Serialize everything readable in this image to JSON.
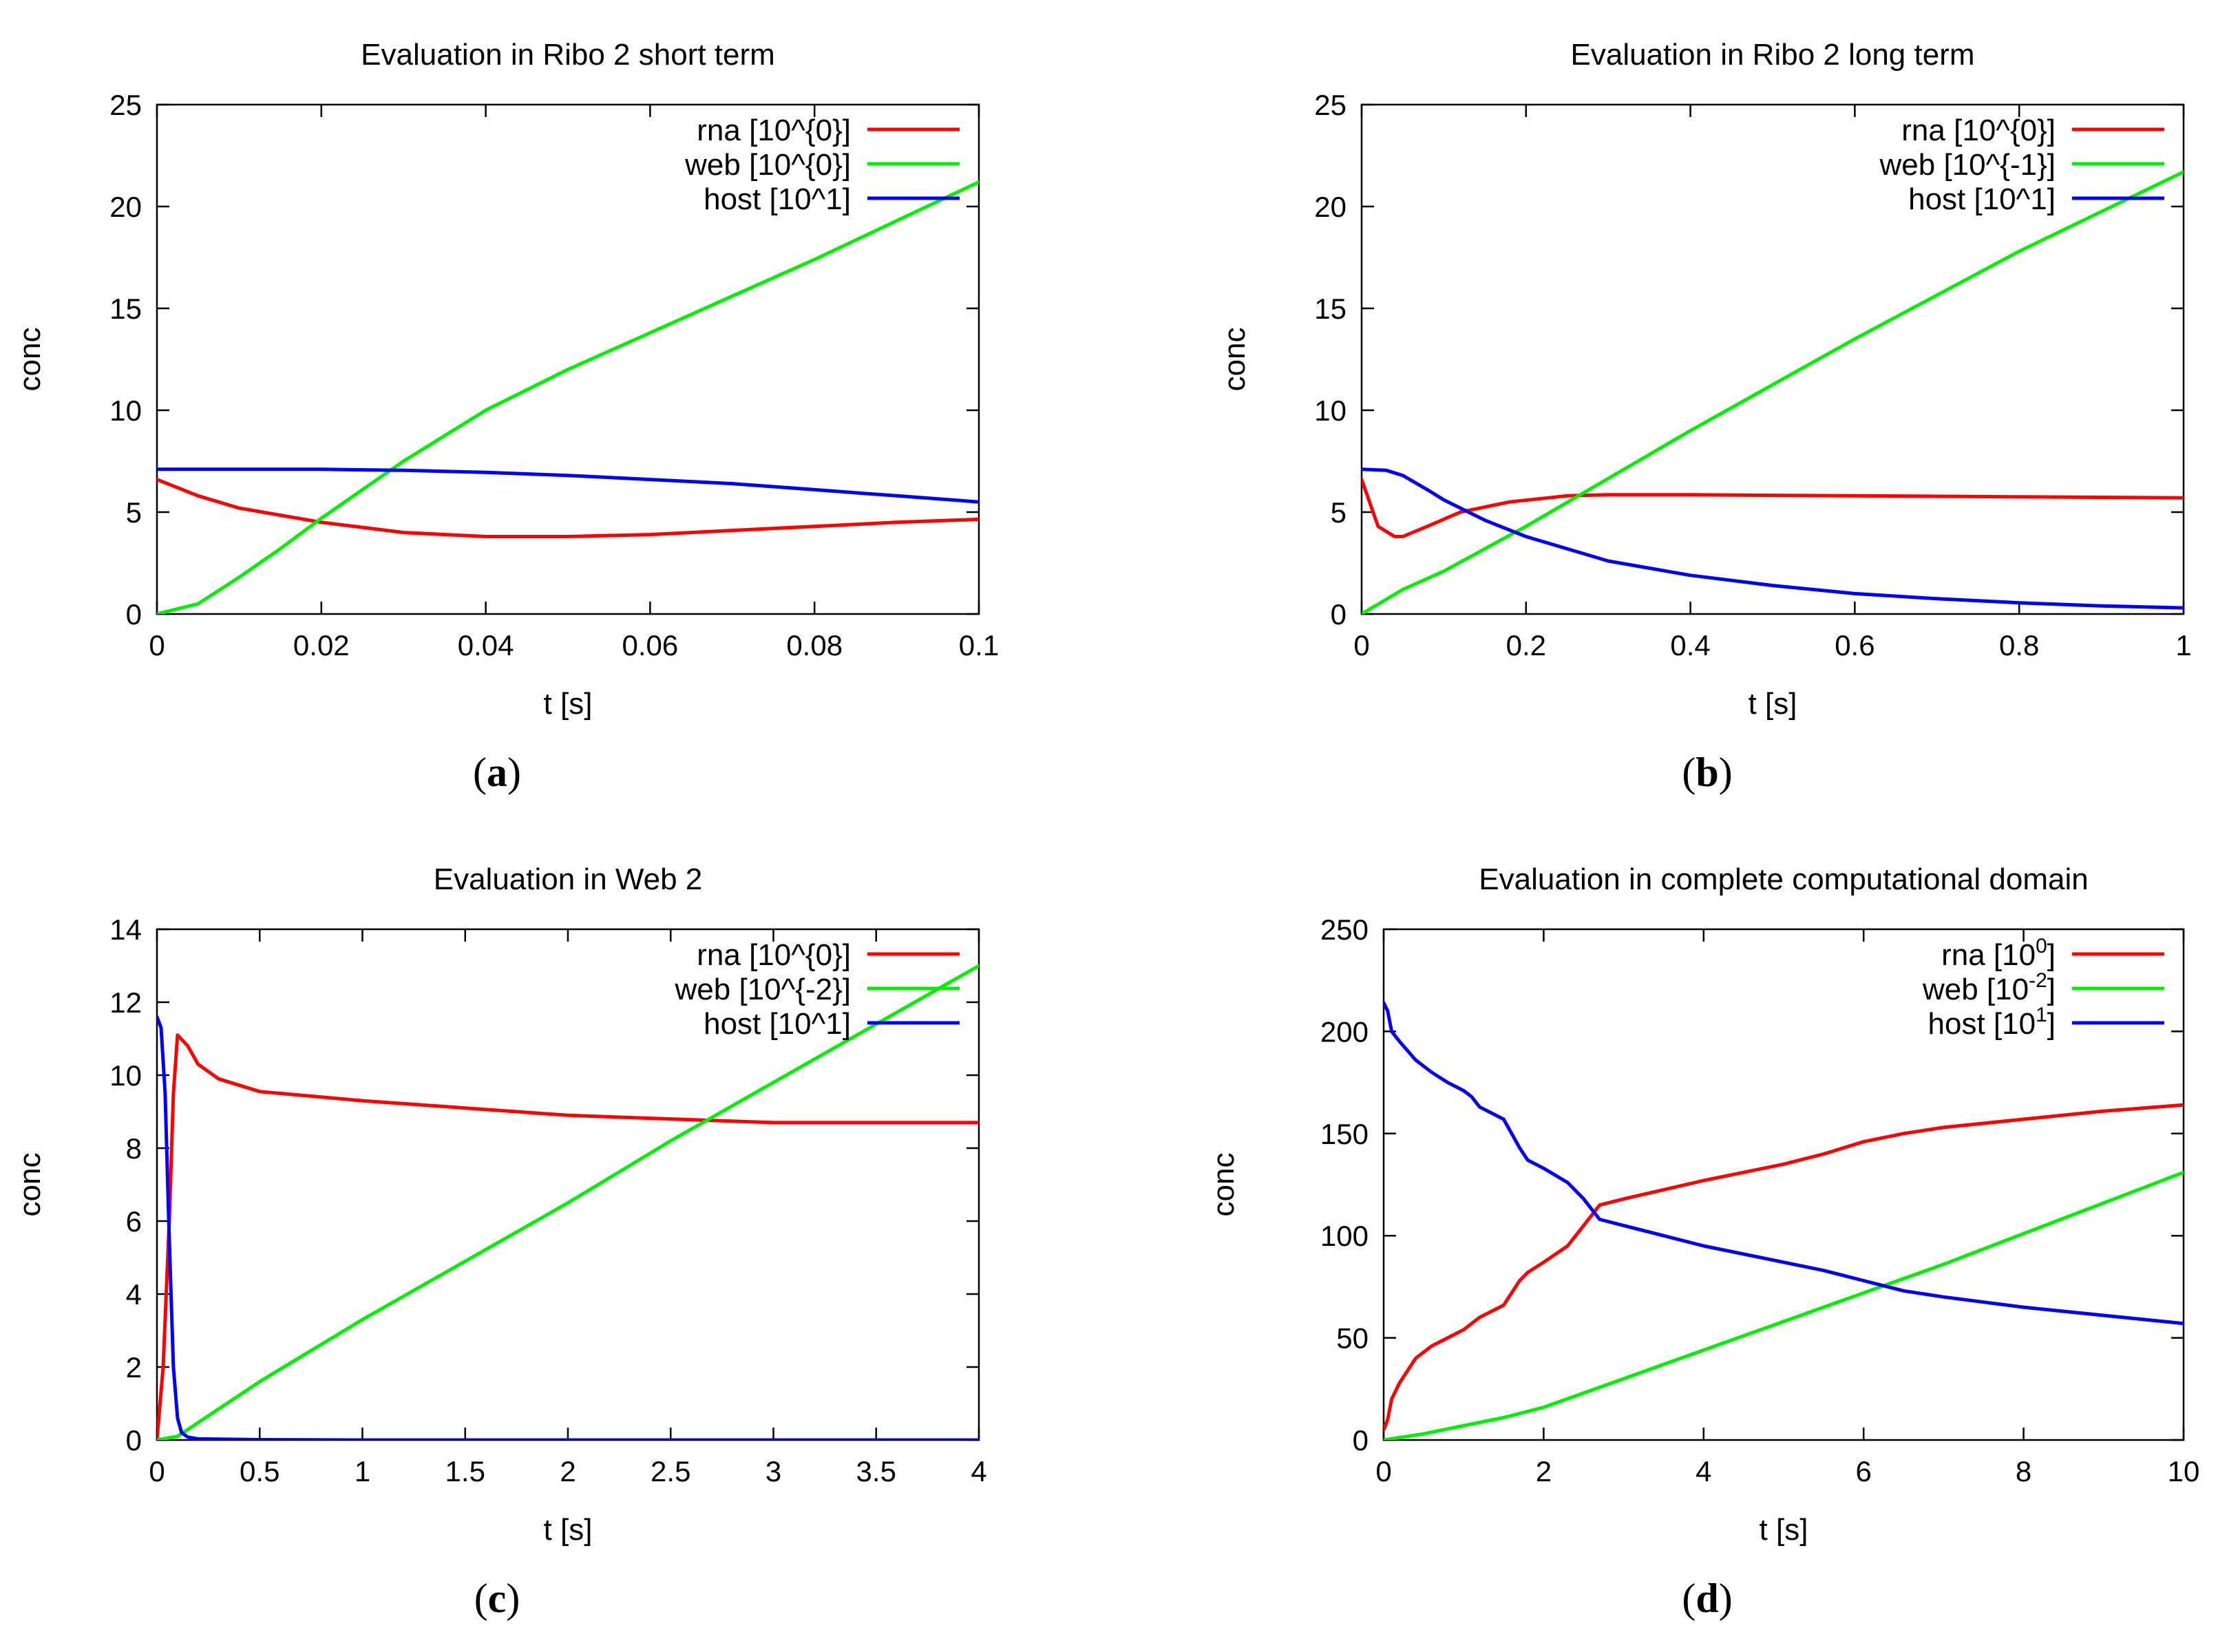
{
  "chart_data": [
    {
      "type": "line",
      "panel": "a",
      "title": "Evaluation in Ribo 2 short term",
      "xlabel": "t [s]",
      "ylabel": "conc",
      "xlim": [
        0,
        0.1
      ],
      "ylim": [
        0,
        25
      ],
      "xticks": [
        "0",
        "0.02",
        "0.04",
        "0.06",
        "0.08",
        "0.1"
      ],
      "yticks": [
        "0",
        "5",
        "10",
        "15",
        "20",
        "25"
      ],
      "xtick_values": [
        0,
        0.02,
        0.04,
        0.06,
        0.08,
        0.1
      ],
      "ytick_values": [
        0,
        5,
        10,
        15,
        20,
        25
      ],
      "caption": "a",
      "legend_position": "top-right",
      "series": [
        {
          "name": "rna [10^{0}]",
          "color": "#ff0000",
          "x": [
            0,
            0.005,
            0.01,
            0.02,
            0.03,
            0.04,
            0.05,
            0.06,
            0.07,
            0.08,
            0.09,
            0.1
          ],
          "y": [
            6.6,
            5.8,
            5.2,
            4.5,
            4.0,
            3.8,
            3.8,
            3.9,
            4.1,
            4.3,
            4.5,
            4.65
          ]
        },
        {
          "name": "web [10^{0}]",
          "color": "#00ee00",
          "x": [
            0,
            0.005,
            0.01,
            0.015,
            0.02,
            0.03,
            0.04,
            0.05,
            0.06,
            0.07,
            0.08,
            0.09,
            0.1
          ],
          "y": [
            0,
            0.5,
            1.8,
            3.2,
            4.7,
            7.5,
            10.0,
            12.0,
            13.8,
            15.6,
            17.4,
            19.3,
            21.2
          ]
        },
        {
          "name": "host [10^1]",
          "color": "#0000ff",
          "x": [
            0,
            0.02,
            0.03,
            0.04,
            0.05,
            0.06,
            0.07,
            0.08,
            0.09,
            0.1
          ],
          "y": [
            7.1,
            7.1,
            7.05,
            6.95,
            6.8,
            6.6,
            6.4,
            6.1,
            5.8,
            5.5
          ]
        }
      ]
    },
    {
      "type": "line",
      "panel": "b",
      "title": "Evaluation in Ribo 2 long term",
      "xlabel": "t [s]",
      "ylabel": "conc",
      "xlim": [
        0,
        1
      ],
      "ylim": [
        0,
        25
      ],
      "xticks": [
        "0",
        "0.2",
        "0.4",
        "0.6",
        "0.8",
        "1"
      ],
      "yticks": [
        "0",
        "5",
        "10",
        "15",
        "20",
        "25"
      ],
      "xtick_values": [
        0,
        0.2,
        0.4,
        0.6,
        0.8,
        1
      ],
      "ytick_values": [
        0,
        5,
        10,
        15,
        20,
        25
      ],
      "caption": "b",
      "legend_position": "top-right",
      "series": [
        {
          "name": "rna [10^{0}]",
          "color": "#ff0000",
          "x": [
            0,
            0.02,
            0.04,
            0.05,
            0.08,
            0.12,
            0.18,
            0.25,
            0.3,
            0.4,
            0.6,
            0.8,
            1.0
          ],
          "y": [
            6.6,
            4.3,
            3.8,
            3.8,
            4.3,
            5.0,
            5.5,
            5.8,
            5.85,
            5.85,
            5.8,
            5.75,
            5.7
          ]
        },
        {
          "name": "web [10^{-1}]",
          "color": "#00ee00",
          "x": [
            0,
            0.05,
            0.1,
            0.2,
            0.4,
            0.6,
            0.8,
            1.0
          ],
          "y": [
            0,
            1.2,
            2.1,
            4.3,
            9.0,
            13.5,
            17.8,
            21.7
          ]
        },
        {
          "name": "host [10^1]",
          "color": "#0000ff",
          "x": [
            0,
            0.03,
            0.05,
            0.08,
            0.1,
            0.15,
            0.2,
            0.3,
            0.4,
            0.5,
            0.6,
            0.7,
            0.8,
            0.9,
            1.0
          ],
          "y": [
            7.1,
            7.05,
            6.8,
            6.1,
            5.6,
            4.6,
            3.8,
            2.6,
            1.9,
            1.4,
            1.0,
            0.75,
            0.55,
            0.4,
            0.3
          ]
        }
      ]
    },
    {
      "type": "line",
      "panel": "c",
      "title": "Evaluation in Web 2",
      "xlabel": "t [s]",
      "ylabel": "conc",
      "xlim": [
        0,
        4
      ],
      "ylim": [
        0,
        14
      ],
      "xticks": [
        "0",
        "0.5",
        "1",
        "1.5",
        "2",
        "2.5",
        "3",
        "3.5",
        "4"
      ],
      "yticks": [
        "0",
        "2",
        "4",
        "6",
        "8",
        "10",
        "12",
        "14"
      ],
      "xtick_values": [
        0,
        0.5,
        1,
        1.5,
        2,
        2.5,
        3,
        3.5,
        4
      ],
      "ytick_values": [
        0,
        2,
        4,
        6,
        8,
        10,
        12,
        14
      ],
      "caption": "c",
      "legend_position": "top-right",
      "series": [
        {
          "name": "rna [10^{0}]",
          "color": "#ff0000",
          "x": [
            0,
            0.03,
            0.06,
            0.08,
            0.1,
            0.15,
            0.2,
            0.3,
            0.5,
            1.0,
            1.5,
            2.0,
            2.5,
            3.0,
            3.5,
            4.0
          ],
          "y": [
            0,
            2.0,
            6.0,
            9.5,
            11.1,
            10.8,
            10.3,
            9.9,
            9.55,
            9.3,
            9.1,
            8.9,
            8.8,
            8.7,
            8.7,
            8.7
          ]
        },
        {
          "name": "web [10^{-2}]",
          "color": "#00ee00",
          "x": [
            0,
            0.1,
            0.5,
            1.0,
            1.5,
            2.0,
            2.5,
            3.0,
            3.5,
            4.0
          ],
          "y": [
            0,
            0.1,
            1.6,
            3.3,
            4.9,
            6.5,
            8.2,
            9.8,
            11.4,
            13.0
          ]
        },
        {
          "name": "host [10^1]",
          "color": "#0000ff",
          "x": [
            0,
            0.02,
            0.04,
            0.06,
            0.08,
            0.1,
            0.12,
            0.15,
            0.2,
            0.5,
            1.0,
            2.0,
            4.0
          ],
          "y": [
            11.6,
            11.3,
            9.5,
            5.5,
            2.0,
            0.6,
            0.2,
            0.08,
            0.03,
            0.01,
            0.0,
            0.0,
            0.0
          ]
        }
      ]
    },
    {
      "type": "line",
      "panel": "d",
      "title": "Evaluation in complete computational domain",
      "xlabel": "t [s]",
      "ylabel": "conc",
      "xlim": [
        0,
        10
      ],
      "ylim": [
        0,
        250
      ],
      "xticks": [
        "0",
        "2",
        "4",
        "6",
        "8",
        "10"
      ],
      "yticks": [
        "0",
        "50",
        "100",
        "150",
        "200",
        "250"
      ],
      "xtick_values": [
        0,
        2,
        4,
        6,
        8,
        10
      ],
      "ytick_values": [
        0,
        50,
        100,
        150,
        200,
        250
      ],
      "caption": "d",
      "legend_position": "top-right",
      "series": [
        {
          "name": "rna [10^{0}]",
          "label_base": "rna [10",
          "label_exp": "0",
          "label_close": "]",
          "color": "#ff0000",
          "x": [
            0,
            0.05,
            0.1,
            0.2,
            0.4,
            0.6,
            0.8,
            1.0,
            1.2,
            1.5,
            1.7,
            1.8,
            2.0,
            2.3,
            2.5,
            2.7,
            3.0,
            4.0,
            5.0,
            5.5,
            6.0,
            6.5,
            7.0,
            8.0,
            9.0,
            10.0
          ],
          "y": [
            5,
            10,
            20,
            28,
            40,
            46,
            50,
            54,
            60,
            66,
            78,
            82,
            87,
            95,
            105,
            115,
            118,
            127,
            135,
            140,
            146,
            150,
            153,
            157,
            161,
            164
          ]
        },
        {
          "name": "web [10^{-2}]",
          "label_base": "web [10",
          "label_exp": "-2",
          "label_close": "]",
          "color": "#00ee00",
          "x": [
            0,
            0.5,
            1.0,
            1.5,
            2.0,
            3.0,
            4.0,
            5.0,
            6.0,
            7.0,
            8.0,
            9.0,
            10.0
          ],
          "y": [
            0,
            3,
            7,
            11,
            16,
            30,
            44,
            58,
            72,
            86,
            101,
            116,
            131
          ]
        },
        {
          "name": "host [10^{1}]",
          "label_base": "host [10",
          "label_exp": "1",
          "label_close": "]",
          "color": "#0000ff",
          "x": [
            0,
            0.05,
            0.1,
            0.2,
            0.4,
            0.6,
            0.8,
            1.0,
            1.1,
            1.2,
            1.5,
            1.7,
            1.8,
            2.0,
            2.3,
            2.5,
            2.7,
            3.0,
            4.0,
            5.0,
            5.5,
            6.0,
            6.5,
            7.0,
            8.0,
            9.0,
            10.0
          ],
          "y": [
            214,
            210,
            200,
            195,
            186,
            180,
            175,
            171,
            168,
            163,
            157,
            143,
            137,
            133,
            126,
            118,
            108,
            105,
            95,
            87,
            83,
            78,
            73,
            70,
            65,
            61,
            57
          ]
        }
      ]
    }
  ]
}
